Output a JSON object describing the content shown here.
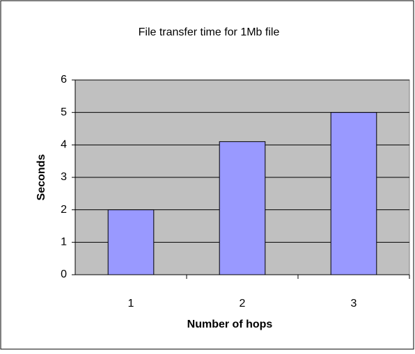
{
  "chart_data": {
    "type": "bar",
    "title": "File transfer time for 1Mb file",
    "x_label": "Number of hops",
    "y_label": "Seconds",
    "categories": [
      "1",
      "2",
      "3"
    ],
    "values": [
      2,
      4.1,
      5
    ],
    "color": "#9999ff",
    "ylim": [
      0,
      6
    ],
    "yticks": [
      0,
      1,
      2,
      3,
      4,
      5,
      6
    ],
    "grid": true
  }
}
